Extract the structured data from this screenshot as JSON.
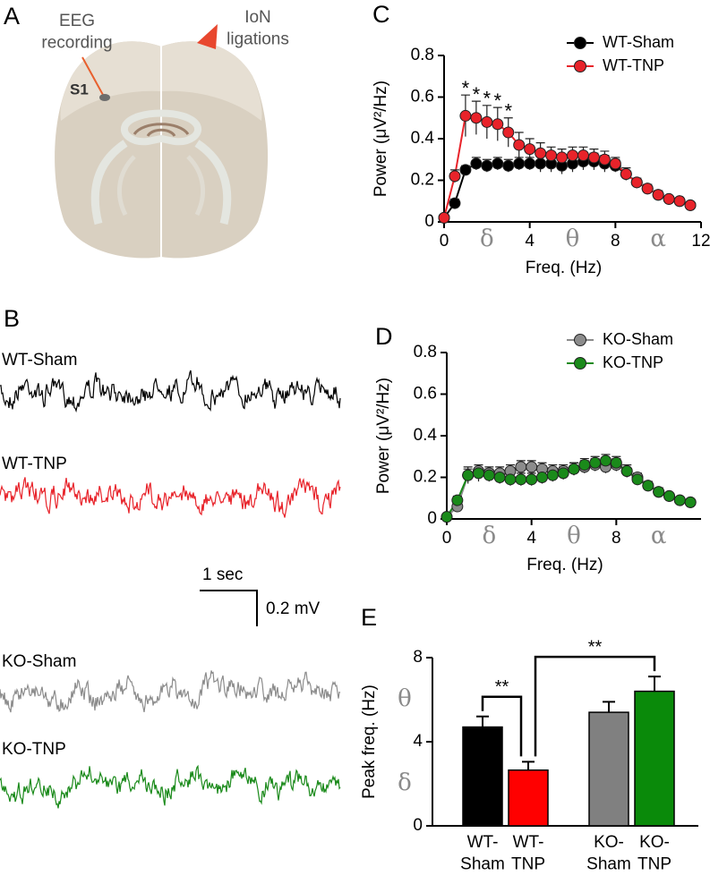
{
  "panel_a": {
    "label": "A",
    "eeg_label": "EEG\nrecording",
    "ion_label": "IoN\nligations",
    "s1_label": "S1"
  },
  "panel_b": {
    "label": "B",
    "traces": [
      {
        "name": "WT-Sham",
        "color": "#000000"
      },
      {
        "name": "WT-TNP",
        "color": "#e8232a"
      },
      {
        "name": "KO-Sham",
        "color": "#8c8c8c"
      },
      {
        "name": "KO-TNP",
        "color": "#1a8a1a"
      }
    ],
    "scale_bar": {
      "time": "1 sec",
      "amplitude": "0.2 mV"
    }
  },
  "chart_data": [
    {
      "type": "line",
      "panel_label": "C",
      "x_label": "Freq. (Hz)",
      "y_label": "Power (μV²/Hz)",
      "x": [
        0,
        0.5,
        1,
        1.5,
        2,
        2.5,
        3,
        3.5,
        4,
        4.5,
        5,
        5.5,
        6,
        6.5,
        7,
        7.5,
        8,
        8.5,
        9,
        9.5,
        10,
        10.5,
        11,
        11.5
      ],
      "series": [
        {
          "name": "WT-Sham",
          "color": "#000000",
          "values": [
            0.02,
            0.09,
            0.25,
            0.28,
            0.27,
            0.28,
            0.27,
            0.28,
            0.28,
            0.28,
            0.28,
            0.27,
            0.28,
            0.29,
            0.29,
            0.28,
            0.27,
            0.23,
            0.19,
            0.16,
            0.13,
            0.11,
            0.1,
            0.08
          ],
          "errors": [
            0.01,
            0.02,
            0.02,
            0.03,
            0.03,
            0.03,
            0.03,
            0.03,
            0.03,
            0.04,
            0.04,
            0.04,
            0.04,
            0.04,
            0.04,
            0.04,
            0.03,
            0.03,
            0.02,
            0.02,
            0.02,
            0.01,
            0.01,
            0.01
          ]
        },
        {
          "name": "WT-TNP",
          "color": "#e8232a",
          "values": [
            0.02,
            0.22,
            0.51,
            0.5,
            0.48,
            0.47,
            0.43,
            0.37,
            0.35,
            0.33,
            0.32,
            0.31,
            0.32,
            0.32,
            0.31,
            0.3,
            0.28,
            0.23,
            0.19,
            0.16,
            0.13,
            0.11,
            0.1,
            0.08
          ],
          "errors": [
            0.01,
            0.03,
            0.1,
            0.08,
            0.08,
            0.08,
            0.07,
            0.06,
            0.05,
            0.05,
            0.04,
            0.04,
            0.04,
            0.04,
            0.04,
            0.04,
            0.03,
            0.03,
            0.02,
            0.02,
            0.02,
            0.01,
            0.01,
            0.01
          ]
        }
      ],
      "xlim": [
        0,
        12
      ],
      "xticks": [
        0,
        4,
        8,
        12
      ],
      "ylim": [
        0,
        0.8
      ],
      "yticks": [
        0,
        0.2,
        0.4,
        0.6,
        0.8
      ],
      "legend": "upper right",
      "annotations": [
        {
          "text": "*",
          "x": 1
        },
        {
          "text": "*",
          "x": 1.5
        },
        {
          "text": "*",
          "x": 2
        },
        {
          "text": "*",
          "x": 2.5
        },
        {
          "text": "*",
          "x": 3
        }
      ],
      "band_labels": [
        {
          "text": "δ",
          "x": 2
        },
        {
          "text": "θ",
          "x": 6
        },
        {
          "text": "α",
          "x": 10
        }
      ]
    },
    {
      "type": "line",
      "panel_label": "D",
      "x_label": "Freq. (Hz)",
      "y_label": "Power (μV²/Hz)",
      "x": [
        0,
        0.5,
        1,
        1.5,
        2,
        2.5,
        3,
        3.5,
        4,
        4.5,
        5,
        5.5,
        6,
        6.5,
        7,
        7.5,
        8,
        8.5,
        9,
        9.5,
        10,
        10.5,
        11,
        11.5
      ],
      "series": [
        {
          "name": "KO-Sham",
          "color": "#8c8c8c",
          "values": [
            0.01,
            0.06,
            0.21,
            0.23,
            0.22,
            0.22,
            0.23,
            0.25,
            0.25,
            0.24,
            0.23,
            0.23,
            0.24,
            0.25,
            0.26,
            0.25,
            0.26,
            0.23,
            0.2,
            0.16,
            0.13,
            0.11,
            0.09,
            0.08
          ],
          "errors": [
            0.01,
            0.02,
            0.03,
            0.03,
            0.03,
            0.03,
            0.03,
            0.03,
            0.03,
            0.03,
            0.03,
            0.03,
            0.03,
            0.03,
            0.03,
            0.03,
            0.03,
            0.03,
            0.02,
            0.02,
            0.02,
            0.01,
            0.01,
            0.01
          ]
        },
        {
          "name": "KO-TNP",
          "color": "#1a8a1a",
          "values": [
            0.01,
            0.09,
            0.21,
            0.22,
            0.21,
            0.2,
            0.19,
            0.19,
            0.19,
            0.2,
            0.21,
            0.22,
            0.24,
            0.26,
            0.27,
            0.28,
            0.27,
            0.23,
            0.19,
            0.16,
            0.13,
            0.11,
            0.09,
            0.08
          ],
          "errors": [
            0.01,
            0.02,
            0.04,
            0.04,
            0.03,
            0.03,
            0.03,
            0.03,
            0.03,
            0.03,
            0.03,
            0.03,
            0.03,
            0.03,
            0.03,
            0.03,
            0.03,
            0.03,
            0.02,
            0.02,
            0.02,
            0.01,
            0.01,
            0.01
          ]
        }
      ],
      "xlim": [
        0,
        12
      ],
      "xticks": [
        0,
        4,
        8
      ],
      "ylim": [
        0,
        0.8
      ],
      "yticks": [
        0,
        0.2,
        0.4,
        0.6,
        0.8
      ],
      "legend": "upper right",
      "band_labels": [
        {
          "text": "δ",
          "x": 2
        },
        {
          "text": "θ",
          "x": 6
        },
        {
          "text": "α",
          "x": 10
        }
      ]
    },
    {
      "type": "bar",
      "panel_label": "E",
      "y_label": "Peak freq. (Hz)",
      "categories": [
        "WT-\nSham",
        "WT-\nTNP",
        "KO-\nSham",
        "KO-\nTNP"
      ],
      "values": [
        4.7,
        2.65,
        5.4,
        6.4
      ],
      "errors": [
        0.5,
        0.4,
        0.5,
        0.7
      ],
      "colors": [
        "#000000",
        "#ff0000",
        "#808080",
        "#0a8a0a"
      ],
      "ylim": [
        0,
        8
      ],
      "yticks": [
        0,
        4,
        8
      ],
      "comparisons": [
        {
          "text": "**",
          "categories": [
            0,
            1
          ]
        },
        {
          "text": "**",
          "categories": [
            1,
            3
          ]
        }
      ],
      "band_labels": [
        {
          "text": "θ",
          "y": 6
        },
        {
          "text": "δ",
          "y": 2
        }
      ]
    }
  ]
}
